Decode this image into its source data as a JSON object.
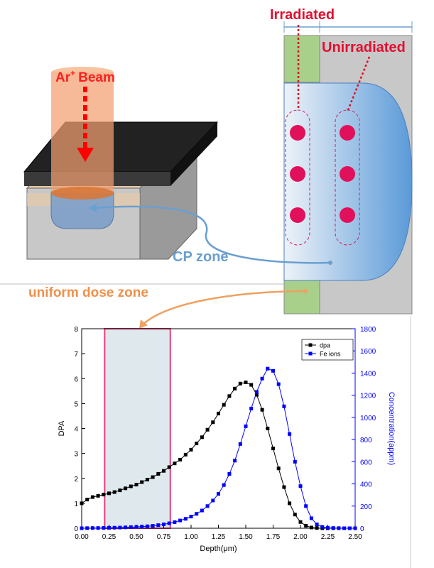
{
  "diagram": {
    "irradiated": "Irradiated",
    "unirradiated": "Unirradiated",
    "beam_ion": "Ar",
    "beam_charge": "+",
    "beam_word": "Beam",
    "cp_zone": "CP zone",
    "uniform_zone": "uniform dose zone"
  },
  "chart_data": {
    "type": "line",
    "x_label": "Depth(μm)",
    "y_label": "DPA",
    "y2_label": "Concentration(appm)",
    "x": [
      0,
      0.05,
      0.1,
      0.15,
      0.2,
      0.25,
      0.3,
      0.35,
      0.4,
      0.45,
      0.5,
      0.55,
      0.6,
      0.65,
      0.7,
      0.75,
      0.8,
      0.85,
      0.9,
      0.95,
      1.0,
      1.05,
      1.1,
      1.15,
      1.2,
      1.25,
      1.3,
      1.35,
      1.4,
      1.45,
      1.5,
      1.55,
      1.6,
      1.65,
      1.7,
      1.75,
      1.8,
      1.85,
      1.9,
      1.95,
      2.0,
      2.05,
      2.1,
      2.15,
      2.2,
      2.25,
      2.3,
      2.35,
      2.4,
      2.45,
      2.5
    ],
    "series": [
      {
        "name": "dpa",
        "color": "#000000",
        "axis": "y",
        "values": [
          1.0,
          1.15,
          1.25,
          1.3,
          1.35,
          1.4,
          1.45,
          1.52,
          1.6,
          1.68,
          1.75,
          1.85,
          1.95,
          2.05,
          2.18,
          2.3,
          2.45,
          2.6,
          2.75,
          2.95,
          3.15,
          3.4,
          3.65,
          3.95,
          4.25,
          4.6,
          4.95,
          5.3,
          5.6,
          5.8,
          5.85,
          5.75,
          5.35,
          4.75,
          4.0,
          3.2,
          2.4,
          1.65,
          1.0,
          0.55,
          0.25,
          0.1,
          0.03,
          0.01,
          0,
          0,
          0,
          0,
          0,
          0,
          0
        ]
      },
      {
        "name": "Fe ions",
        "color": "#0000ff",
        "axis": "y2",
        "values": [
          0,
          1,
          2,
          2,
          3,
          4,
          5,
          6,
          8,
          10,
          12,
          15,
          18,
          22,
          28,
          35,
          45,
          55,
          70,
          85,
          105,
          130,
          160,
          200,
          250,
          310,
          390,
          490,
          610,
          760,
          920,
          1080,
          1230,
          1350,
          1440,
          1420,
          1300,
          1100,
          850,
          600,
          380,
          200,
          90,
          35,
          12,
          5,
          2,
          1,
          0,
          0,
          0
        ]
      }
    ],
    "xlim": [
      0,
      2.5
    ],
    "xticks": [
      {
        "value": 0,
        "label": "0.00"
      },
      {
        "value": 0.25,
        "label": "0.25"
      },
      {
        "value": 0.5,
        "label": "0.50"
      },
      {
        "value": 0.75,
        "label": "0.75"
      },
      {
        "value": 1,
        "label": "1.00"
      },
      {
        "value": 1.25,
        "label": "1.25"
      },
      {
        "value": 1.5,
        "label": "1.50"
      },
      {
        "value": 1.75,
        "label": "1.75"
      },
      {
        "value": 2,
        "label": "2.00"
      },
      {
        "value": 2.25,
        "label": "2.25"
      },
      {
        "value": 2.5,
        "label": "2.50"
      }
    ],
    "ylim": [
      0,
      8
    ],
    "yticks": [
      0,
      1,
      2,
      3,
      4,
      5,
      6,
      7,
      8
    ],
    "y2lim": [
      0,
      1800
    ],
    "y2ticks": [
      0,
      200,
      400,
      600,
      800,
      1000,
      1200,
      1400,
      1600,
      1800
    ],
    "shaded_x": [
      0.21,
      0.81
    ],
    "legend": "upper right",
    "grid": false
  }
}
